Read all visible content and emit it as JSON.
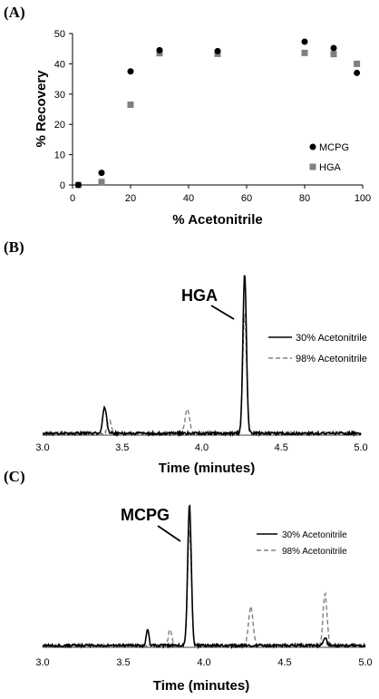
{
  "chart_data": [
    {
      "type": "scatter",
      "panel_label": "(A)",
      "xlabel": "% Acetonitrile",
      "ylabel": "% Recovery",
      "xlim": [
        0,
        100
      ],
      "ylim": [
        0,
        50
      ],
      "xticks": [
        0,
        20,
        40,
        60,
        80,
        100
      ],
      "yticks": [
        0,
        10,
        20,
        30,
        40,
        50
      ],
      "legend_position": "right",
      "series": [
        {
          "name": "MCPG",
          "color": "#000000",
          "marker": "circle",
          "x": [
            2,
            10,
            20,
            30,
            50,
            80,
            90,
            98
          ],
          "y": [
            0,
            4,
            37.5,
            44.5,
            44.2,
            47.3,
            45.2,
            37
          ]
        },
        {
          "name": "HGA",
          "color": "#808080",
          "marker": "square",
          "x": [
            2,
            10,
            20,
            30,
            50,
            80,
            90,
            98
          ],
          "y": [
            0,
            1,
            26.5,
            43.5,
            43.3,
            43.6,
            43.2,
            40
          ]
        }
      ]
    },
    {
      "type": "line",
      "panel_label": "(B)",
      "xlabel": "Time (minutes)",
      "xlim": [
        3.0,
        5.0
      ],
      "xticks": [
        "3.0",
        "3.5",
        "4.0",
        "4.5",
        "5.0"
      ],
      "annotation": "HGA",
      "legend_position": "right",
      "series": [
        {
          "name": "30% Acetonitrile",
          "color": "#000000",
          "style": "solid",
          "peaks": [
            {
              "t": 3.39,
              "h": 0.16,
              "w": 0.012
            },
            {
              "t": 4.27,
              "h": 1.0,
              "w": 0.011
            }
          ]
        },
        {
          "name": "98% Acetonitrile",
          "color": "#808080",
          "style": "dashed",
          "peaks": [
            {
              "t": 3.42,
              "h": 0.08,
              "w": 0.012
            },
            {
              "t": 3.91,
              "h": 0.15,
              "w": 0.014
            },
            {
              "t": 4.27,
              "h": 0.75,
              "w": 0.012
            }
          ]
        }
      ]
    },
    {
      "type": "line",
      "panel_label": "(C)",
      "xlabel": "Time (minutes)",
      "xlim": [
        3.0,
        5.0
      ],
      "xticks": [
        "3.0",
        "3.5",
        "4.0",
        "4.5",
        "5.0"
      ],
      "annotation": "MCPG",
      "legend_position": "right",
      "series": [
        {
          "name": "30% Acetonitrile",
          "color": "#000000",
          "style": "solid",
          "peaks": [
            {
              "t": 3.65,
              "h": 0.12,
              "w": 0.008
            },
            {
              "t": 3.91,
              "h": 1.0,
              "w": 0.011
            },
            {
              "t": 4.75,
              "h": 0.06,
              "w": 0.01
            }
          ]
        },
        {
          "name": "98% Acetonitrile",
          "color": "#808080",
          "style": "dashed",
          "peaks": [
            {
              "t": 3.79,
              "h": 0.12,
              "w": 0.01
            },
            {
              "t": 3.91,
              "h": 0.82,
              "w": 0.012
            },
            {
              "t": 4.29,
              "h": 0.27,
              "w": 0.014
            },
            {
              "t": 4.75,
              "h": 0.37,
              "w": 0.012
            }
          ]
        }
      ]
    }
  ]
}
